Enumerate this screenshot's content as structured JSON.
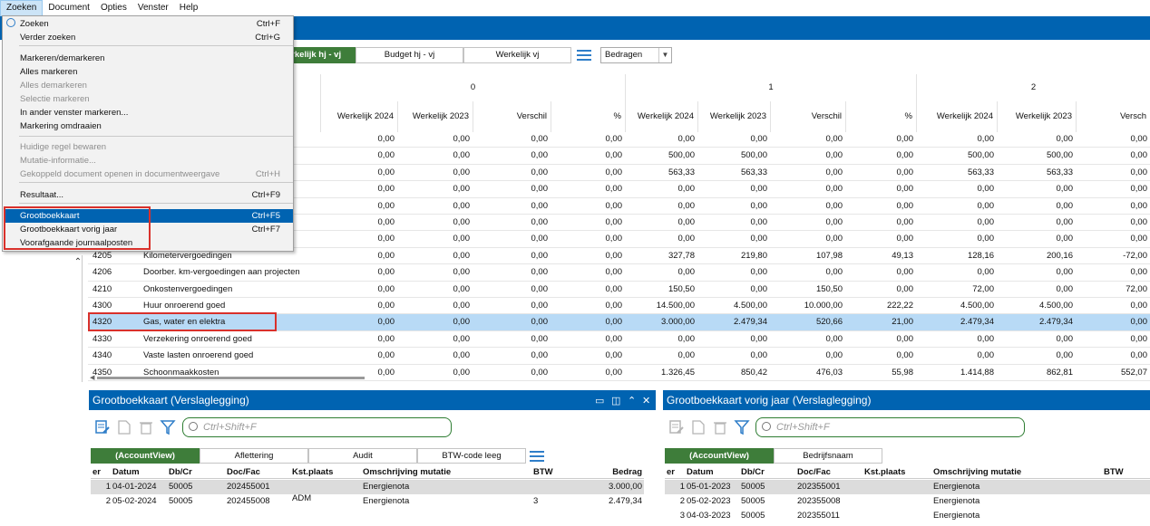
{
  "menubar": [
    "Zoeken",
    "Document",
    "Opties",
    "Venster",
    "Help"
  ],
  "dropdown": {
    "items": [
      {
        "label": "Zoeken",
        "shortcut": "Ctrl+F",
        "disabled": false
      },
      {
        "label": "Verder zoeken",
        "shortcut": "Ctrl+G",
        "disabled": false
      },
      {
        "label": "Markeren/demarkeren",
        "shortcut": "",
        "disabled": false
      },
      {
        "label": "Alles markeren",
        "shortcut": "",
        "disabled": false
      },
      {
        "label": "Alles demarkeren",
        "shortcut": "",
        "disabled": true
      },
      {
        "label": "Selectie markeren",
        "shortcut": "",
        "disabled": true
      },
      {
        "label": "In ander venster markeren...",
        "shortcut": "",
        "disabled": false
      },
      {
        "label": "Markering omdraaien",
        "shortcut": "",
        "disabled": false
      },
      {
        "label": "Huidige regel bewaren",
        "shortcut": "",
        "disabled": true
      },
      {
        "label": "Mutatie-informatie...",
        "shortcut": "",
        "disabled": true
      },
      {
        "label": "Gekoppeld document openen in documentweergave",
        "shortcut": "Ctrl+H",
        "disabled": true
      },
      {
        "label": "Resultaat...",
        "shortcut": "Ctrl+F9",
        "disabled": false
      },
      {
        "label": "Grootboekkaart",
        "shortcut": "Ctrl+F5",
        "disabled": false,
        "highlighted": true
      },
      {
        "label": "Grootboekkaart vorig jaar",
        "shortcut": "Ctrl+F7",
        "disabled": false
      },
      {
        "label": "Voorafgaande journaalposten",
        "shortcut": "",
        "disabled": false
      }
    ]
  },
  "tabs": {
    "items": [
      "erkelijk hj - vj",
      "Budget hj - vj",
      "Werkelijk vj"
    ],
    "select_value": "Bedragen"
  },
  "grid": {
    "groups": [
      "0",
      "1",
      "2"
    ],
    "col_headers": [
      "Werkelijk 2024",
      "Werkelijk 2023",
      "Verschil",
      "%",
      "Werkelijk 2024",
      "Werkelijk 2023",
      "Verschil",
      "%",
      "Werkelijk 2024",
      "Werkelijk 2023",
      "Versch"
    ],
    "rows": [
      {
        "code": "",
        "name": "",
        "v": [
          "0,00",
          "0,00",
          "0,00",
          "0,00",
          "0,00",
          "0,00",
          "0,00",
          "0,00",
          "0,00",
          "0,00",
          "0,00"
        ]
      },
      {
        "code": "",
        "name": "",
        "v": [
          "0,00",
          "0,00",
          "0,00",
          "0,00",
          "500,00",
          "500,00",
          "0,00",
          "0,00",
          "500,00",
          "500,00",
          "0,00"
        ]
      },
      {
        "code": "",
        "name": "",
        "v": [
          "0,00",
          "0,00",
          "0,00",
          "0,00",
          "563,33",
          "563,33",
          "0,00",
          "0,00",
          "563,33",
          "563,33",
          "0,00"
        ]
      },
      {
        "code": "",
        "name": "",
        "v": [
          "0,00",
          "0,00",
          "0,00",
          "0,00",
          "0,00",
          "0,00",
          "0,00",
          "0,00",
          "0,00",
          "0,00",
          "0,00"
        ]
      },
      {
        "code": "",
        "name": "",
        "v": [
          "0,00",
          "0,00",
          "0,00",
          "0,00",
          "0,00",
          "0,00",
          "0,00",
          "0,00",
          "0,00",
          "0,00",
          "0,00"
        ]
      },
      {
        "code": "",
        "name": "",
        "v": [
          "0,00",
          "0,00",
          "0,00",
          "0,00",
          "0,00",
          "0,00",
          "0,00",
          "0,00",
          "0,00",
          "0,00",
          "0,00"
        ]
      },
      {
        "code": "",
        "name": "",
        "v": [
          "0,00",
          "0,00",
          "0,00",
          "0,00",
          "0,00",
          "0,00",
          "0,00",
          "0,00",
          "0,00",
          "0,00",
          "0,00"
        ]
      },
      {
        "code": "4205",
        "name": "Kilometervergoedingen",
        "v": [
          "0,00",
          "0,00",
          "0,00",
          "0,00",
          "327,78",
          "219,80",
          "107,98",
          "49,13",
          "128,16",
          "200,16",
          "-72,00"
        ]
      },
      {
        "code": "4206",
        "name": "Doorber. km-vergoedingen aan projecten",
        "v": [
          "0,00",
          "0,00",
          "0,00",
          "0,00",
          "0,00",
          "0,00",
          "0,00",
          "0,00",
          "0,00",
          "0,00",
          "0,00"
        ]
      },
      {
        "code": "4210",
        "name": "Onkostenvergoedingen",
        "v": [
          "0,00",
          "0,00",
          "0,00",
          "0,00",
          "150,50",
          "0,00",
          "150,50",
          "0,00",
          "72,00",
          "0,00",
          "72,00"
        ]
      },
      {
        "code": "4300",
        "name": "Huur onroerend goed",
        "v": [
          "0,00",
          "0,00",
          "0,00",
          "0,00",
          "14.500,00",
          "4.500,00",
          "10.000,00",
          "222,22",
          "4.500,00",
          "4.500,00",
          "0,00"
        ]
      },
      {
        "code": "4320",
        "name": "Gas, water en elektra",
        "v": [
          "0,00",
          "0,00",
          "0,00",
          "0,00",
          "3.000,00",
          "2.479,34",
          "520,66",
          "21,00",
          "2.479,34",
          "2.479,34",
          "0,00"
        ],
        "selected": true
      },
      {
        "code": "4330",
        "name": "Verzekering onroerend goed",
        "v": [
          "0,00",
          "0,00",
          "0,00",
          "0,00",
          "0,00",
          "0,00",
          "0,00",
          "0,00",
          "0,00",
          "0,00",
          "0,00"
        ]
      },
      {
        "code": "4340",
        "name": "Vaste lasten onroerend goed",
        "v": [
          "0,00",
          "0,00",
          "0,00",
          "0,00",
          "0,00",
          "0,00",
          "0,00",
          "0,00",
          "0,00",
          "0,00",
          "0,00"
        ]
      },
      {
        "code": "4350",
        "name": "Schoonmaakkosten",
        "v": [
          "0,00",
          "0,00",
          "0,00",
          "0,00",
          "1.326,45",
          "850,42",
          "476,03",
          "55,98",
          "1.414,88",
          "862,81",
          "552,07"
        ]
      }
    ]
  },
  "panel_left": {
    "title": "Grootboekkaart (Verslaglegging)",
    "search_placeholder": "Ctrl+Shift+F",
    "tabs": [
      "(AccountView)",
      "Aflettering",
      "Audit",
      "BTW-code leeg"
    ],
    "headers": [
      "er",
      "Datum",
      "Db/Cr",
      "Doc/Fac",
      "Kst.plaats",
      "Omschrijving mutatie",
      "BTW",
      "Bedrag"
    ],
    "rows": [
      [
        "1",
        "04-01-2024",
        "50005",
        "202455001",
        "",
        "Energienota",
        "",
        "3.000,00"
      ],
      [
        "2",
        "05-02-2024",
        "50005",
        "202455008",
        "ADM",
        "Energienota",
        "3",
        "2.479,34"
      ]
    ]
  },
  "panel_right": {
    "title": "Grootboekkaart vorig jaar (Verslaglegging)",
    "search_placeholder": "Ctrl+Shift+F",
    "tabs": [
      "(AccountView)",
      "Bedrijfsnaam"
    ],
    "headers": [
      "er",
      "Datum",
      "Db/Cr",
      "Doc/Fac",
      "Kst.plaats",
      "Omschrijving mutatie",
      "BTW"
    ],
    "rows": [
      [
        "1",
        "05-01-2023",
        "50005",
        "202355001",
        "",
        "Energienota",
        ""
      ],
      [
        "2",
        "05-02-2023",
        "50005",
        "202355008",
        "",
        "Energienota",
        ""
      ],
      [
        "3",
        "04-03-2023",
        "50005",
        "202355011",
        "",
        "Energienota",
        ""
      ]
    ]
  },
  "colors": {
    "accent_blue": "#0063b1",
    "tab_green": "#3e7d3a",
    "selected_row": "#b8daf6",
    "highlight_red": "#d9312b"
  }
}
